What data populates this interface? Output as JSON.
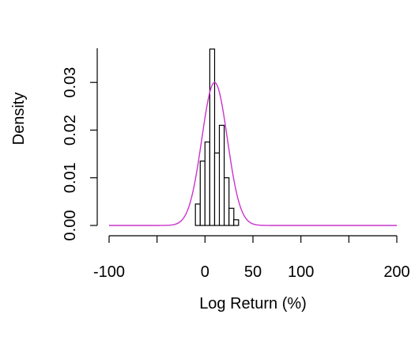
{
  "chart_data": {
    "type": "histogram",
    "xlabel": "Log Return (%)",
    "ylabel": "Density",
    "xlim": [
      -100,
      200
    ],
    "ylim": [
      0,
      0.037
    ],
    "x_ticks": [
      -100,
      -50,
      0,
      50,
      100,
      150,
      200
    ],
    "x_tick_labels": [
      "-100",
      "",
      "0",
      "50",
      "100",
      "",
      "200"
    ],
    "y_ticks": [
      0.0,
      0.01,
      0.02,
      0.03
    ],
    "y_tick_labels": [
      "0.00",
      "0.01",
      "0.02",
      "0.03"
    ],
    "bins": [
      {
        "x0": -10,
        "x1": -5,
        "density": 0.0045
      },
      {
        "x0": -5,
        "x1": 0,
        "density": 0.0135
      },
      {
        "x0": 0,
        "x1": 5,
        "density": 0.0175
      },
      {
        "x0": 5,
        "x1": 10,
        "density": 0.037
      },
      {
        "x0": 10,
        "x1": 15,
        "density": 0.0152
      },
      {
        "x0": 15,
        "x1": 20,
        "density": 0.021
      },
      {
        "x0": 20,
        "x1": 25,
        "density": 0.01
      },
      {
        "x0": 25,
        "x1": 30,
        "density": 0.0036
      },
      {
        "x0": 30,
        "x1": 35,
        "density": 0.0012
      }
    ],
    "curve": {
      "color": "#cc33cc",
      "distribution": "normal",
      "mean": 10,
      "sd": 13.3,
      "x_range": [
        -100,
        200
      ]
    },
    "bar_fill": "#ffffff",
    "bar_stroke": "#000000"
  }
}
